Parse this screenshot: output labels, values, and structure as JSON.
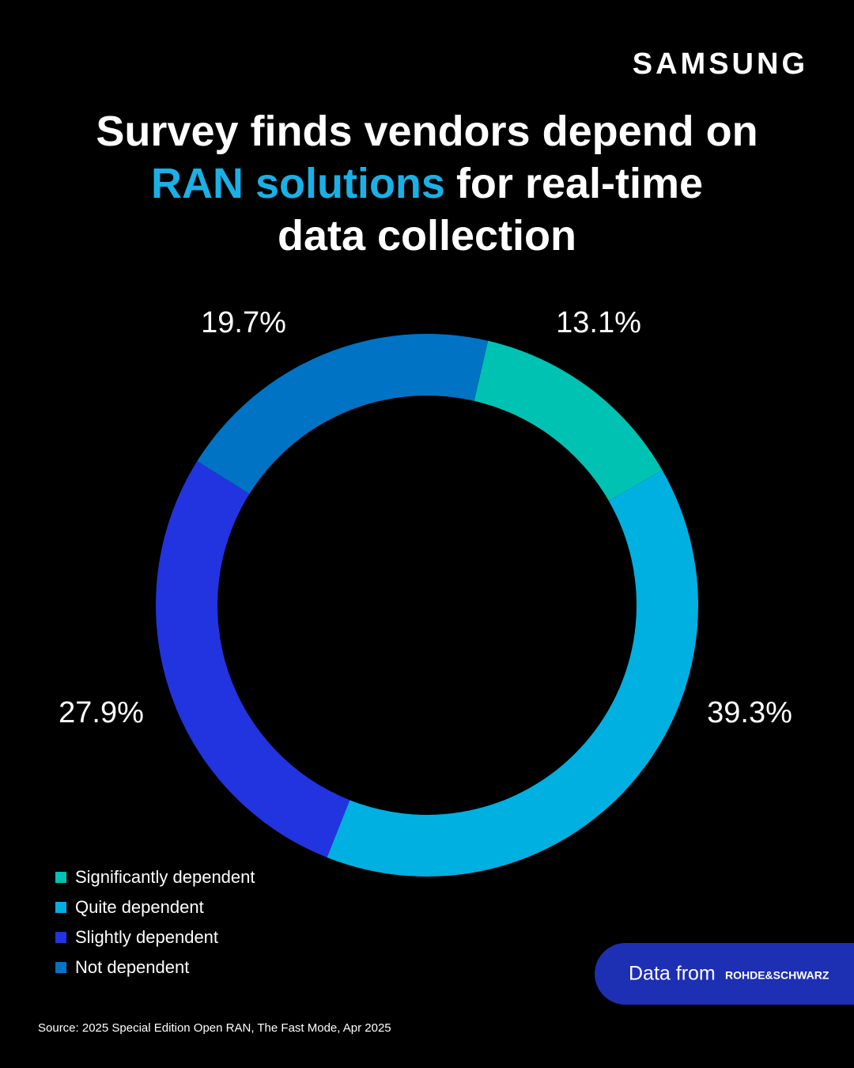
{
  "brand": "SAMSUNG",
  "chart_data": {
    "type": "donut",
    "title": [
      [
        "Survey finds vendors depend on"
      ],
      [
        "RAN solutions",
        "for real-time"
      ],
      [
        "data collection"
      ]
    ],
    "title_highlight_color": "#1ab0e6",
    "categories": [
      "Significantly dependent",
      "Quite dependent",
      "Slightly dependent",
      "Not dependent"
    ],
    "values": [
      13.1,
      39.3,
      27.9,
      19.7
    ],
    "value_labels": [
      "13.1%",
      "39.3%",
      "27.9%",
      "19.7%"
    ],
    "colors": [
      "#00c2b2",
      "#00b0e0",
      "#2234e0",
      "#0073c4"
    ],
    "legend": "bottom-left"
  },
  "source": "Source: 2025 Special Edition Open RAN, The Fast Mode, Apr 2025",
  "badge": {
    "text": "Data from",
    "logo": "ROHDE&SCHWARZ"
  }
}
